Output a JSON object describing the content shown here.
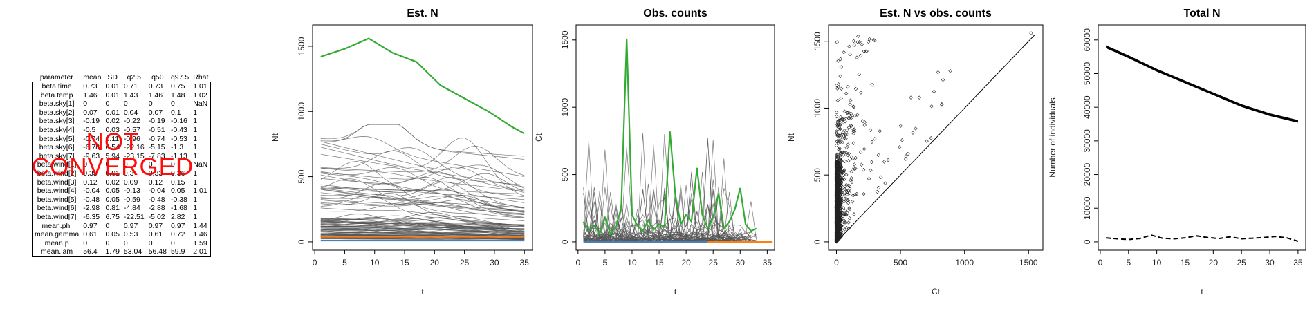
{
  "table": {
    "headers": [
      "parameter",
      "mean",
      "SD",
      "q2.5",
      "q50",
      "q97.5",
      "Rhat"
    ],
    "rows": [
      [
        "beta.time",
        "0.73",
        "0.01",
        "0.71",
        "0.73",
        "0.75",
        "1.01"
      ],
      [
        "beta.temp",
        "1.46",
        "0.01",
        "1.43",
        "1.46",
        "1.48",
        "1.02"
      ],
      [
        "beta.sky[1]",
        "0",
        "0",
        "0",
        "0",
        "0",
        "NaN"
      ],
      [
        "beta.sky[2]",
        "0.07",
        "0.01",
        "0.04",
        "0.07",
        "0.1",
        "1"
      ],
      [
        "beta.sky[3]",
        "-0.19",
        "0.02",
        "-0.22",
        "-0.19",
        "-0.16",
        "1"
      ],
      [
        "beta.sky[4]",
        "-0.5",
        "0.03",
        "-0.57",
        "-0.51",
        "-0.43",
        "1"
      ],
      [
        "beta.sky[5]",
        "-0.74",
        "0.11",
        "-0.96",
        "-0.74",
        "-0.53",
        "1"
      ],
      [
        "beta.sky[6]",
        "-6.78",
        "6.54",
        "-22.16",
        "-5.15",
        "-1.3",
        "1"
      ],
      [
        "beta.sky[7]",
        "-9.63",
        "5.94",
        "-23.15",
        "-7.83",
        "-1.13",
        "1"
      ],
      [
        "beta.wind[1]",
        "0",
        "0",
        "0",
        "0",
        "0",
        "NaN"
      ],
      [
        "beta.wind[2]",
        "0.33",
        "0.01",
        "0.3",
        "0.33",
        "0.36",
        "1"
      ],
      [
        "beta.wind[3]",
        "0.12",
        "0.02",
        "0.09",
        "0.12",
        "0.15",
        "1"
      ],
      [
        "beta.wind[4]",
        "-0.04",
        "0.05",
        "-0.13",
        "-0.04",
        "0.05",
        "1.01"
      ],
      [
        "beta.wind[5]",
        "-0.48",
        "0.05",
        "-0.59",
        "-0.48",
        "-0.38",
        "1"
      ],
      [
        "beta.wind[6]",
        "-2.98",
        "0.81",
        "-4.84",
        "-2.88",
        "-1.68",
        "1"
      ],
      [
        "beta.wind[7]",
        "-6.35",
        "6.75",
        "-22.51",
        "-5.02",
        "2.82",
        "1"
      ],
      [
        "mean.phi",
        "0.97",
        "0",
        "0.97",
        "0.97",
        "0.97",
        "1.44"
      ],
      [
        "mean.gamma",
        "0.61",
        "0.05",
        "0.53",
        "0.61",
        "0.72",
        "1.46"
      ],
      [
        "mean.p",
        "0",
        "0",
        "0",
        "0",
        "0",
        "1.59"
      ],
      [
        "mean.lam",
        "56.4",
        "1.79",
        "53.04",
        "56.48",
        "59.9",
        "2.01"
      ]
    ]
  },
  "stamp": {
    "line1": "NOT",
    "line2": "CONVERGED",
    "color": "#ff0000"
  },
  "colors": {
    "highlight_green": "#33aa33",
    "highlight_orange": "#ff7f0e",
    "highlight_blue": "#4a7fb5",
    "traces": "#555555",
    "black": "#000000"
  },
  "chart_data": [
    {
      "type": "line",
      "title": "Est. N",
      "xlabel": "t",
      "ylabel": "Nt",
      "xlim": [
        1,
        35
      ],
      "ylim": [
        0,
        1600
      ],
      "xticks": [
        0,
        5,
        10,
        15,
        20,
        25,
        30,
        35
      ],
      "yticks": [
        0,
        500,
        1000,
        1500
      ],
      "highlight_series": [
        {
          "name": "",
          "color": "green",
          "points": [
            [
              1,
              1420
            ],
            [
              5,
              1480
            ],
            [
              9,
              1560
            ],
            [
              13,
              1450
            ],
            [
              17,
              1380
            ],
            [
              21,
              1200
            ],
            [
              25,
              1100
            ],
            [
              29,
              1000
            ],
            [
              33,
              880
            ],
            [
              35,
              830
            ]
          ]
        },
        {
          "name": "",
          "color": "orange",
          "points": [
            [
              1,
              40
            ],
            [
              35,
              40
            ]
          ]
        },
        {
          "name": "",
          "color": "blue",
          "points": [
            [
              1,
              10
            ],
            [
              35,
              10
            ]
          ]
        }
      ],
      "background_series_count": 100,
      "background_series_range": [
        0,
        900
      ]
    },
    {
      "type": "line",
      "title": "Obs. counts",
      "xlabel": "t",
      "ylabel": "Ct",
      "xlim": [
        1,
        35
      ],
      "ylim": [
        0,
        1550
      ],
      "xticks": [
        0,
        5,
        10,
        15,
        20,
        25,
        30,
        35
      ],
      "yticks": [
        0,
        500,
        1000,
        1500
      ],
      "highlight_series": [
        {
          "name": "",
          "color": "green",
          "points": [
            [
              1,
              150
            ],
            [
              2,
              90
            ],
            [
              3,
              120
            ],
            [
              4,
              60
            ],
            [
              5,
              180
            ],
            [
              6,
              60
            ],
            [
              7,
              110
            ],
            [
              8,
              250
            ],
            [
              9,
              1510
            ],
            [
              10,
              200
            ],
            [
              11,
              120
            ],
            [
              12,
              80
            ],
            [
              13,
              160
            ],
            [
              14,
              90
            ],
            [
              15,
              130
            ],
            [
              16,
              110
            ],
            [
              17,
              820
            ],
            [
              18,
              350
            ],
            [
              19,
              130
            ],
            [
              20,
              200
            ],
            [
              21,
              150
            ],
            [
              22,
              550
            ],
            [
              23,
              200
            ],
            [
              24,
              100
            ],
            [
              25,
              180
            ],
            [
              26,
              360
            ],
            [
              27,
              100
            ],
            [
              28,
              150
            ],
            [
              29,
              240
            ],
            [
              30,
              400
            ],
            [
              31,
              130
            ],
            [
              32,
              80
            ],
            [
              33,
              100
            ]
          ]
        },
        {
          "name": "",
          "color": "orange",
          "points": [
            [
              24,
              0
            ],
            [
              36,
              0
            ]
          ]
        },
        {
          "name": "",
          "color": "blue",
          "points": [
            [
              1,
              0
            ],
            [
              33,
              0
            ]
          ]
        }
      ],
      "background_series_count": 40,
      "background_series_range": [
        0,
        840
      ]
    },
    {
      "type": "scatter",
      "title": "Est. N vs obs. counts",
      "xlabel": "Ct",
      "ylabel": "Nt",
      "xlim": [
        0,
        1550
      ],
      "ylim": [
        0,
        1560
      ],
      "xticks": [
        0,
        500,
        1000,
        1500
      ],
      "yticks": [
        0,
        500,
        1000,
        1500
      ],
      "reference_line": "y = x",
      "marker": "diamond-open",
      "point_count_estimate": 1200
    },
    {
      "type": "line",
      "title": "Total N",
      "xlabel": "t",
      "ylabel": "Number of individuals",
      "xlim": [
        1,
        35
      ],
      "ylim": [
        0,
        62000
      ],
      "xticks": [
        0,
        5,
        10,
        15,
        20,
        25,
        30,
        35
      ],
      "yticks": [
        0,
        10000,
        20000,
        30000,
        40000,
        50000,
        60000
      ],
      "series": [
        {
          "name": "",
          "style": "solid",
          "values_x": [
            1,
            5,
            10,
            15,
            20,
            25,
            30,
            35
          ],
          "values_y": [
            58000,
            55000,
            51000,
            47500,
            44000,
            40500,
            37800,
            35800
          ]
        },
        {
          "name": "",
          "style": "dashed",
          "values_x": [
            1,
            3,
            5,
            7,
            9,
            11,
            13,
            15,
            17,
            19,
            21,
            23,
            25,
            27,
            29,
            31,
            33,
            35
          ],
          "values_y": [
            1200,
            900,
            700,
            1000,
            2000,
            1100,
            900,
            1200,
            1800,
            1300,
            1000,
            1500,
            900,
            1100,
            1300,
            1600,
            1200,
            200
          ]
        }
      ]
    }
  ]
}
